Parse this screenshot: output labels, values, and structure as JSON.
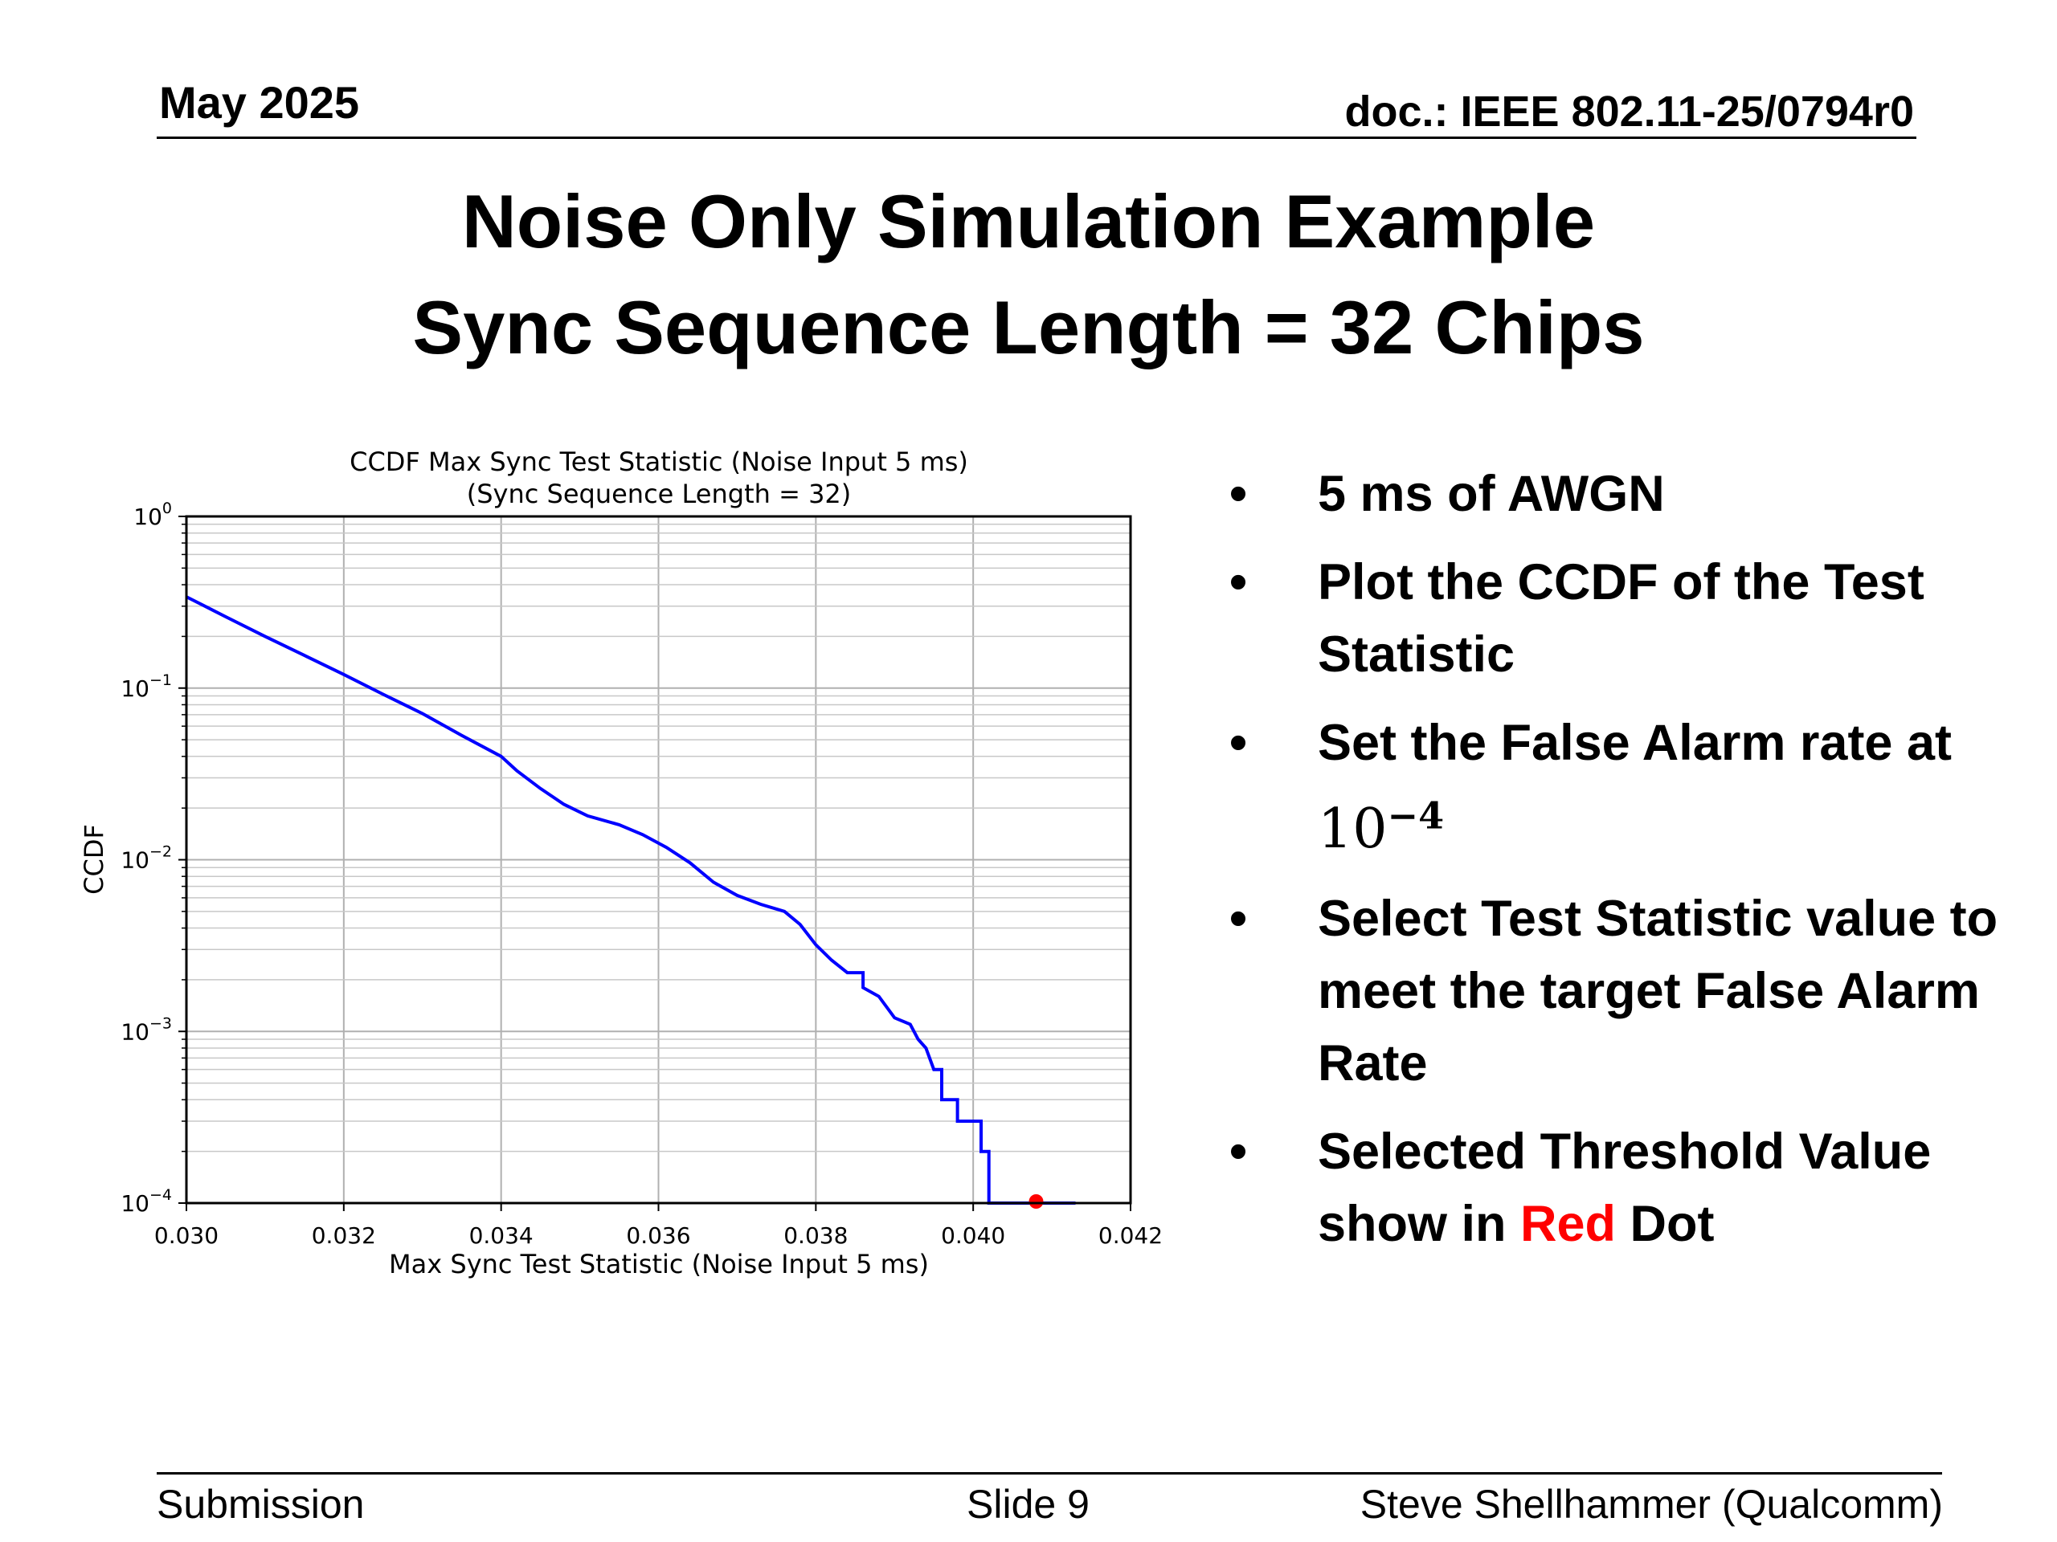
{
  "header": {
    "date": "May 2025",
    "doc": "doc.: IEEE 802.11-25/0794r0"
  },
  "title": {
    "line1": "Noise Only Simulation Example",
    "line2": "Sync Sequence Length = 32 Chips"
  },
  "bullets": [
    {
      "text": "5 ms of AWGN"
    },
    {
      "text": "Plot the CCDF of the Test Statistic"
    },
    {
      "text": "Set the False Alarm rate at",
      "math_base": "10",
      "math_exp": "−4"
    },
    {
      "text": "Select Test Statistic value to meet the target False Alarm Rate"
    },
    {
      "pre": "Selected Threshold Value show in ",
      "highlight": "Red",
      "post": " Dot"
    }
  ],
  "footer": {
    "left": "Submission",
    "center": "Slide 9",
    "right": "Steve Shellhammer (Qualcomm)"
  },
  "chart_data": {
    "type": "line",
    "title": "CCDF Max Sync Test Statistic (Noise Input 5 ms)",
    "subtitle": "(Sync Sequence Length =  32)",
    "xlabel": "Max Sync Test Statistic (Noise Input 5 ms)",
    "ylabel": "CCDF",
    "xlim": [
      0.03,
      0.042
    ],
    "ylim": [
      0.0001,
      1
    ],
    "yscale": "log",
    "grid": true,
    "x_ticks": [
      "0.030",
      "0.032",
      "0.034",
      "0.036",
      "0.038",
      "0.040",
      "0.042"
    ],
    "y_ticks": [
      {
        "base": "10",
        "exp": "0"
      },
      {
        "base": "10",
        "exp": "−1"
      },
      {
        "base": "10",
        "exp": "−2"
      },
      {
        "base": "10",
        "exp": "−3"
      },
      {
        "base": "10",
        "exp": "−4"
      }
    ],
    "line_color": "#0000ff",
    "marker_color": "#ff0000",
    "series": [
      {
        "values": [
          [
            0.03,
            0.34
          ],
          [
            0.0305,
            0.26
          ],
          [
            0.031,
            0.2
          ],
          [
            0.0315,
            0.155
          ],
          [
            0.032,
            0.12
          ],
          [
            0.0325,
            0.092
          ],
          [
            0.033,
            0.071
          ],
          [
            0.0335,
            0.053
          ],
          [
            0.034,
            0.04
          ],
          [
            0.0342,
            0.033
          ],
          [
            0.0345,
            0.026
          ],
          [
            0.0348,
            0.021
          ],
          [
            0.0351,
            0.018
          ],
          [
            0.0355,
            0.016
          ],
          [
            0.0358,
            0.014
          ],
          [
            0.0361,
            0.0118
          ],
          [
            0.0364,
            0.0096
          ],
          [
            0.0367,
            0.0074
          ],
          [
            0.037,
            0.0062
          ],
          [
            0.0373,
            0.0055
          ],
          [
            0.0376,
            0.005
          ],
          [
            0.0378,
            0.0042
          ],
          [
            0.038,
            0.0032
          ],
          [
            0.0382,
            0.0026
          ],
          [
            0.0384,
            0.0022
          ],
          [
            0.0386,
            0.0022
          ],
          [
            0.0386,
            0.0018
          ],
          [
            0.0388,
            0.0016
          ],
          [
            0.039,
            0.0012
          ],
          [
            0.0392,
            0.0011
          ],
          [
            0.0393,
            0.0009
          ],
          [
            0.0394,
            0.0008
          ],
          [
            0.0395,
            0.0006
          ],
          [
            0.0396,
            0.0006
          ],
          [
            0.0396,
            0.0004
          ],
          [
            0.0398,
            0.0004
          ],
          [
            0.0398,
            0.0003
          ],
          [
            0.0401,
            0.0003
          ],
          [
            0.0401,
            0.0002
          ],
          [
            0.0402,
            0.0002
          ],
          [
            0.0402,
            0.0001
          ],
          [
            0.0413,
            0.0001
          ]
        ]
      }
    ],
    "threshold": {
      "x": 0.0408,
      "y": 0.0001
    }
  }
}
